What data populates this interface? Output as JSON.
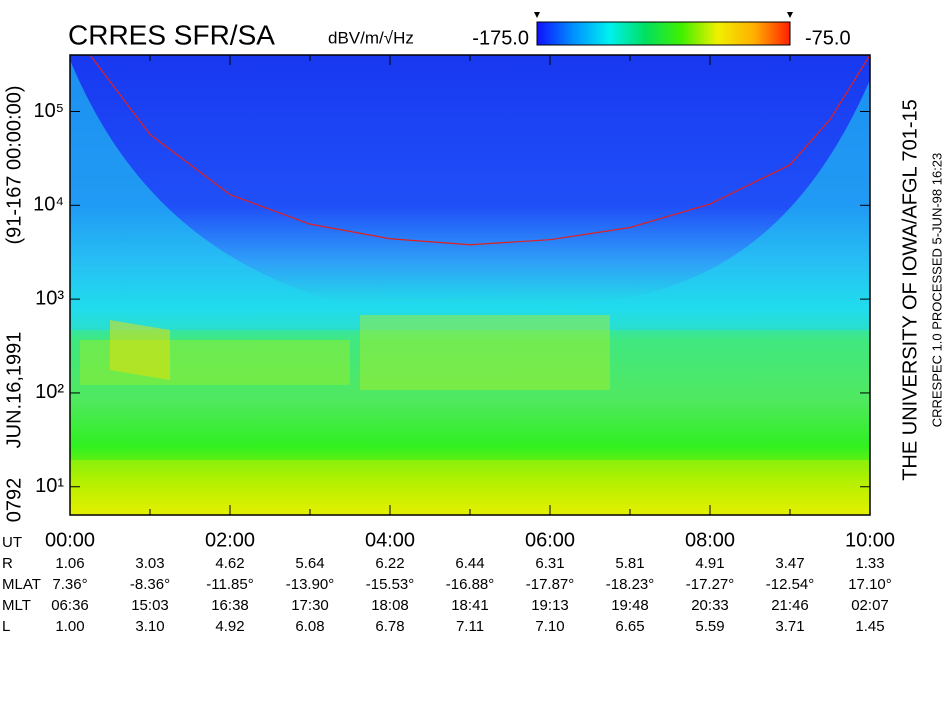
{
  "chart_data": {
    "type": "spectrogram",
    "title": "CRRES SFR/SA",
    "colorbar_units": "dBV/m/√Hz",
    "clim": [
      -175,
      -75
    ],
    "cticks": [
      {
        "value": -175,
        "label": "-175.0"
      },
      {
        "value": -75,
        "label": "-75.0"
      }
    ],
    "colormap": [
      "#1010ff",
      "#0090ff",
      "#00f0f0",
      "#00e060",
      "#40f000",
      "#f0f000",
      "#ffb000",
      "#ff2000"
    ],
    "left_labels": [
      "0792",
      "JUN.16,1991",
      "(91-167 00:00:00)"
    ],
    "right_labels": [
      "THE UNIVERSITY OF IOWA/AFGL 701-15",
      "CRRESPEC 1.0   PROCESSED   5-JUN-98   16:23"
    ],
    "ylog": true,
    "ylim": [
      5,
      400000
    ],
    "yticks": [
      {
        "value": 10,
        "label": "10¹"
      },
      {
        "value": 100,
        "label": "10²"
      },
      {
        "value": 1000,
        "label": "10³"
      },
      {
        "value": 10000,
        "label": "10⁴"
      },
      {
        "value": 100000,
        "label": "10⁵"
      }
    ],
    "xlim": [
      0,
      600
    ],
    "xticks": [
      {
        "value": 0,
        "label": "00:00"
      },
      {
        "value": 120,
        "label": "02:00"
      },
      {
        "value": 240,
        "label": "04:00"
      },
      {
        "value": 360,
        "label": "06:00"
      },
      {
        "value": 480,
        "label": "08:00"
      },
      {
        "value": 600,
        "label": "10:00"
      }
    ],
    "xminorticks": [
      60,
      180,
      300,
      420,
      540
    ],
    "series": [
      {
        "color": "#e02020",
        "x": [
          15,
          60,
          120,
          180,
          240,
          300,
          360,
          420,
          480,
          540,
          570,
          600
        ],
        "values": [
          400000,
          57000,
          13000,
          6300,
          4400,
          3800,
          4300,
          5800,
          10300,
          27000,
          82000,
          400000
        ]
      }
    ],
    "ephemeris": {
      "ut_label": "UT",
      "rows": [
        {
          "label": "R",
          "values": [
            "1.06",
            "3.03",
            "4.62",
            "5.64",
            "6.22",
            "6.44",
            "6.31",
            "5.81",
            "4.91",
            "3.47",
            "1.33"
          ]
        },
        {
          "label": "MLAT",
          "values": [
            "7.36°",
            "-8.36°",
            "-11.85°",
            "-13.90°",
            "-15.53°",
            "-16.88°",
            "-17.87°",
            "-18.23°",
            "-17.27°",
            "-12.54°",
            "17.10°"
          ]
        },
        {
          "label": "MLT",
          "values": [
            "06:36",
            "15:03",
            "16:38",
            "17:30",
            "18:08",
            "18:41",
            "19:13",
            "19:48",
            "20:33",
            "21:46",
            "02:07"
          ]
        },
        {
          "label": "L",
          "values": [
            "1.00",
            "3.10",
            "4.92",
            "6.08",
            "6.78",
            "7.11",
            "7.10",
            "6.65",
            "5.59",
            "3.71",
            "1.45"
          ]
        }
      ]
    }
  }
}
